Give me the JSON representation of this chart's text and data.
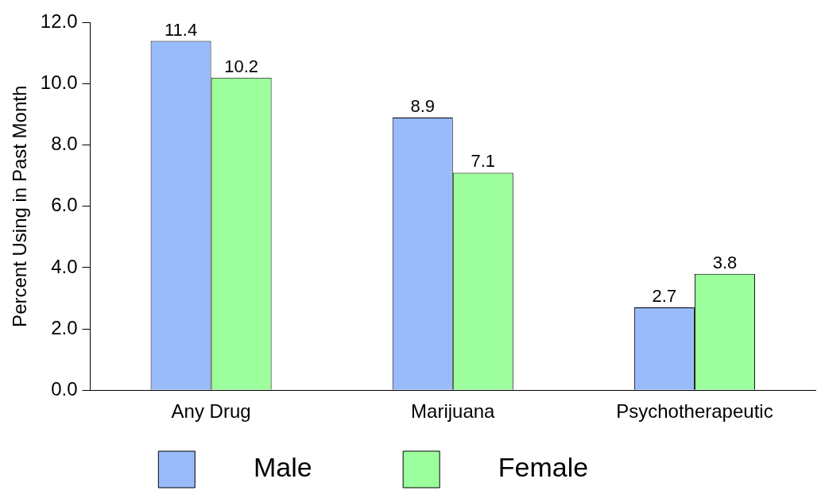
{
  "chart_data": {
    "type": "bar",
    "ylabel": "Percent Using in Past Month",
    "categories": [
      "Any Drug",
      "Marijuana",
      "Psychotherapeutic"
    ],
    "series": [
      {
        "name": "Male",
        "color": "#99bbf9",
        "values": [
          11.4,
          8.9,
          2.7
        ]
      },
      {
        "name": "Female",
        "color": "#9cfe9c",
        "values": [
          10.2,
          7.1,
          3.8
        ]
      }
    ],
    "ylim": [
      0,
      12
    ],
    "yticks": [
      {
        "value": 0,
        "label": "0.0"
      },
      {
        "value": 2,
        "label": "2.0"
      },
      {
        "value": 4,
        "label": "4.0"
      },
      {
        "value": 6,
        "label": "6.0"
      },
      {
        "value": 8,
        "label": "8.0"
      },
      {
        "value": 10,
        "label": "10.0"
      },
      {
        "value": 12,
        "label": "12.0"
      }
    ],
    "grid": false,
    "legend": "bottom",
    "data_labels": true
  }
}
